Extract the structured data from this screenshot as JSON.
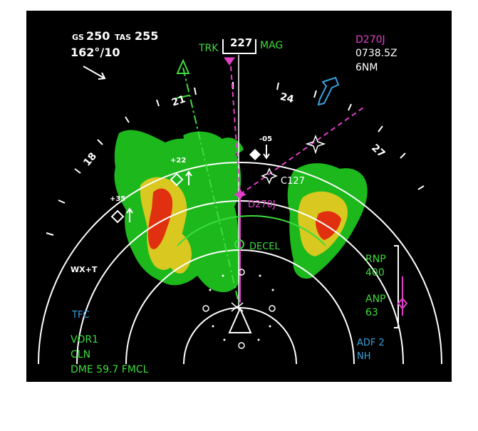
{
  "speed": {
    "gs_label": "GS",
    "gs_value": "250",
    "tas_label": "TAS",
    "tas_value": "255"
  },
  "wind": {
    "text": "162°/10"
  },
  "heading": {
    "trk_label": "TRK",
    "value": "227",
    "mag_label": "MAG"
  },
  "waypoint": {
    "name": "D270J",
    "eta": "0738.5Z",
    "distance": "6NM"
  },
  "compass": {
    "label_21": "21",
    "label_24": "24",
    "label_27": "27",
    "label_18": "18"
  },
  "traffic": [
    {
      "alt": "+22"
    },
    {
      "alt": "+35"
    },
    {
      "alt": "-05"
    }
  ],
  "map_labels": {
    "fix_c127": "C127",
    "route_wpt": "D270J",
    "decel": "DECEL"
  },
  "left_panel": {
    "wx_mode": "WX+T",
    "tfc": "TFC",
    "vor_source": "VOR1",
    "vor_id": "CLN",
    "dme": "DME 59.7 FMCL"
  },
  "right_panel": {
    "rnp_label": "RNP",
    "rnp_value": "400",
    "anp_label": "ANP",
    "anp_value": "63",
    "adf_source": "ADF 2",
    "adf_id": "NH"
  },
  "colors": {
    "green": "#3ddc3d",
    "magenta": "#e040c8",
    "cyan": "#3aa0dd",
    "wx_red": "#e03010",
    "wx_yellow": "#d8c820",
    "wx_green": "#1cb81c"
  }
}
